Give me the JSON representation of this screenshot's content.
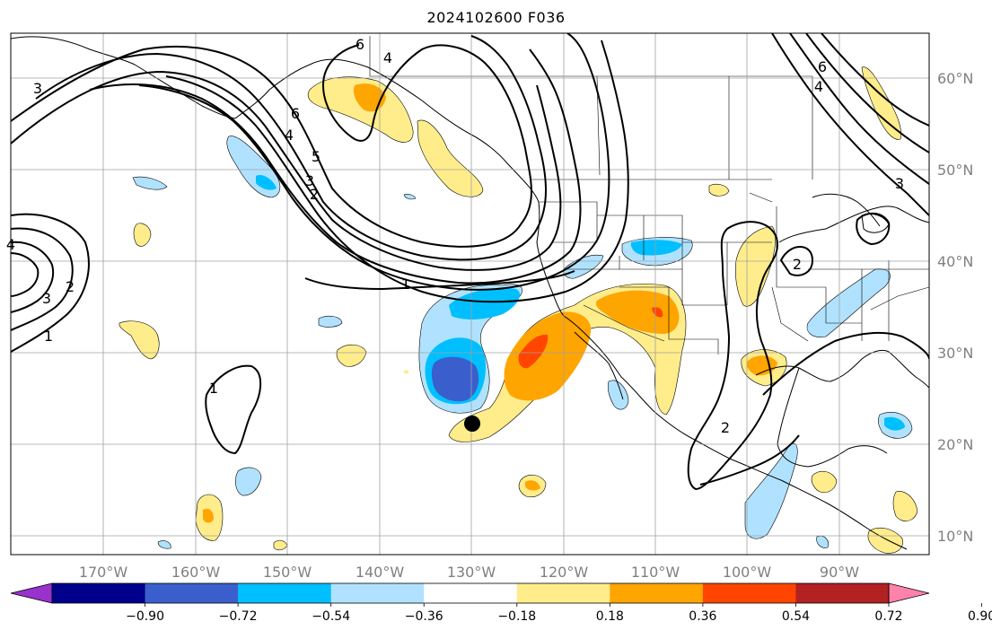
{
  "title": "2024102600 F036",
  "axes": {
    "lon_labels": [
      "170°W",
      "160°W",
      "150°W",
      "140°W",
      "130°W",
      "120°W",
      "110°W",
      "100°W",
      "90°W"
    ],
    "lat_labels": [
      "60°N",
      "50°N",
      "40°N",
      "30°N",
      "20°N",
      "10°N"
    ]
  },
  "colorbar": {
    "colors": [
      "#9932cc",
      "#00008b",
      "#3a5fcd",
      "#00bfff",
      "#b0e2ff",
      "#ffffff",
      "#ffec8b",
      "#ffa500",
      "#ff4500",
      "#b22222",
      "#ff82ab"
    ],
    "tick_labels": [
      "−0.90",
      "−0.72",
      "−0.54",
      "−0.36",
      "−0.18",
      "0.18",
      "0.36",
      "0.54",
      "0.72",
      "0.90"
    ]
  },
  "contour_labels": [
    "6",
    "4",
    "3",
    "6",
    "4",
    "5",
    "3",
    "2",
    "1",
    "1",
    "3",
    "2",
    "1",
    "4",
    "2",
    "2",
    "6",
    "4",
    "3"
  ],
  "chart_data": {
    "type": "heatmap",
    "title": "2024102600 F036",
    "x_range_lon": [
      -180,
      -80
    ],
    "y_range_lat": [
      8,
      65
    ],
    "filled_levels": [
      -0.9,
      -0.72,
      -0.54,
      -0.36,
      -0.18,
      0.18,
      0.36,
      0.54,
      0.72,
      0.9
    ],
    "contour_levels": [
      1,
      2,
      3,
      4,
      5,
      6
    ],
    "marker": {
      "lon": -130,
      "lat": 22.5
    }
  }
}
